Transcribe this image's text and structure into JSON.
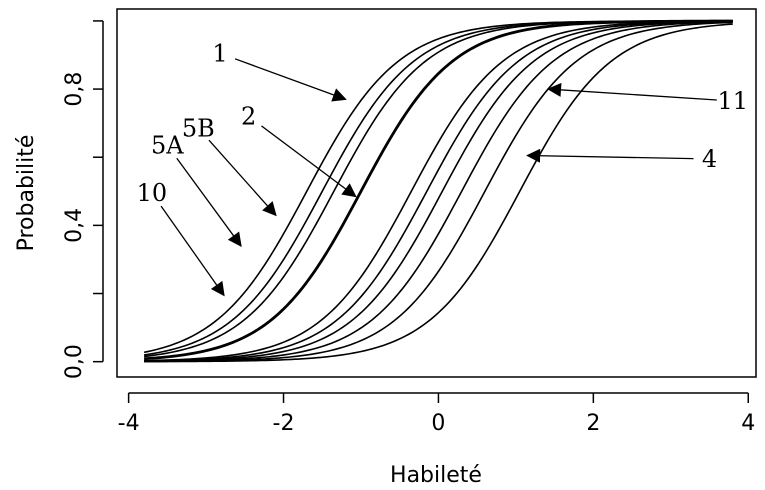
{
  "chart_data": {
    "type": "line",
    "title": "",
    "xlabel": "Habileté",
    "ylabel": "Probabilité",
    "xlim": [
      -3.8,
      3.8
    ],
    "ylim": [
      0,
      1
    ],
    "x_ticks": [
      -4,
      -2,
      0,
      2,
      4
    ],
    "x_tick_labels": [
      "-4",
      "-2",
      "0",
      "2",
      "4"
    ],
    "y_ticks": [
      0,
      0.2,
      0.4,
      0.6,
      0.8,
      1.0
    ],
    "y_tick_labels": [
      "0,0",
      "",
      "0,4",
      "",
      "0,8",
      ""
    ],
    "grid": false,
    "curve_model": "logistic: p = 1 / (1 + exp(-a * (x - b)))",
    "series": [
      {
        "id": "1",
        "label": "1",
        "a": 1.7,
        "b": -1.7,
        "bold": false
      },
      {
        "id": "5B",
        "label": "5B",
        "a": 1.7,
        "b": -1.5,
        "bold": false
      },
      {
        "id": "5A",
        "label": "5A",
        "a": 1.7,
        "b": -1.35,
        "bold": false
      },
      {
        "id": "10",
        "label": "10",
        "a": 1.7,
        "b": -1.0,
        "bold": true
      },
      {
        "id": "2",
        "label": "2",
        "a": 1.7,
        "b": -0.35,
        "bold": false
      },
      {
        "id": "c6",
        "label": "",
        "a": 1.7,
        "b": -0.15,
        "bold": false
      },
      {
        "id": "c7",
        "label": "",
        "a": 1.7,
        "b": 0.05,
        "bold": false
      },
      {
        "id": "11",
        "label": "11",
        "a": 1.7,
        "b": 0.3,
        "bold": false
      },
      {
        "id": "c9",
        "label": "",
        "a": 1.7,
        "b": 0.6,
        "bold": false
      },
      {
        "id": "4",
        "label": "4",
        "a": 1.7,
        "b": 1.05,
        "bold": false
      }
    ],
    "annotations": [
      {
        "text": "1",
        "text_pos": [
          -2.82,
          0.905
        ],
        "arrow_to": [
          -1.2,
          0.77
        ]
      },
      {
        "text": "2",
        "text_pos": [
          -2.45,
          0.72
        ],
        "arrow_to": [
          -1.07,
          0.485
        ]
      },
      {
        "text": "5B",
        "text_pos": [
          -3.1,
          0.685
        ],
        "arrow_to": [
          -2.1,
          0.43
        ]
      },
      {
        "text": "5A",
        "text_pos": [
          -3.5,
          0.635
        ],
        "arrow_to": [
          -2.55,
          0.34
        ]
      },
      {
        "text": "10",
        "text_pos": [
          -3.7,
          0.495
        ],
        "arrow_to": [
          -2.77,
          0.195
        ]
      },
      {
        "text": "11",
        "text_pos": [
          3.8,
          0.765
        ],
        "arrow_to": [
          1.42,
          0.8
        ]
      },
      {
        "text": "4",
        "text_pos": [
          3.5,
          0.595
        ],
        "arrow_to": [
          1.15,
          0.605
        ]
      }
    ]
  }
}
